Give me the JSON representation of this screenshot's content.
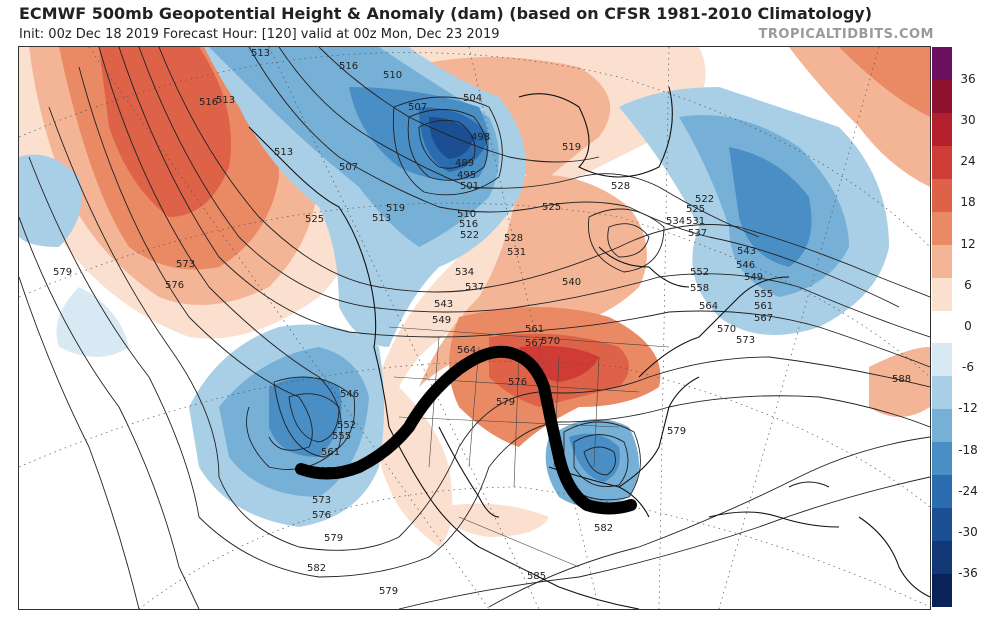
{
  "header": {
    "title": "ECMWF 500mb Geopotential Height & Anomaly (dam) (based on CFSR 1981-2010 Climatology)",
    "subtitle": "Init: 00z Dec 18 2019   Forecast Hour: [120]   valid at 00z Mon, Dec 23 2019",
    "credit": "TROPICALTIDBITS.COM"
  },
  "colorbar": {
    "ticks": [
      "36",
      "30",
      "24",
      "18",
      "12",
      "6",
      "0",
      "-6",
      "-12",
      "-18",
      "-24",
      "-30",
      "-36"
    ],
    "colors": [
      "#6b0f5e",
      "#8e1230",
      "#b31f2a",
      "#cf3b35",
      "#de6248",
      "#ea8a65",
      "#f4b596",
      "#fbe0d0",
      "#ffffff",
      "#d9e9f4",
      "#a9cfe6",
      "#76b0d7",
      "#4a8ec6",
      "#2b6cb0",
      "#1c4f92",
      "#123775",
      "#0b2258"
    ]
  },
  "contours": {
    "labels": [
      "513",
      "516",
      "510",
      "513",
      "516",
      "507",
      "504",
      "498",
      "489",
      "495",
      "501",
      "510",
      "516",
      "522",
      "507",
      "513",
      "519",
      "525",
      "513",
      "519",
      "525",
      "528",
      "531",
      "534",
      "537",
      "540",
      "543",
      "549",
      "528",
      "522",
      "525",
      "531",
      "534",
      "537",
      "543",
      "546",
      "549",
      "552",
      "555",
      "558",
      "561",
      "564",
      "567",
      "570",
      "573",
      "561",
      "564",
      "567",
      "570",
      "576",
      "579",
      "579",
      "576",
      "573",
      "579",
      "546",
      "552",
      "555",
      "561",
      "567",
      "573",
      "576",
      "579",
      "582",
      "585",
      "582",
      "579",
      "588"
    ]
  },
  "annotation": {
    "shape": "hand-drawn black wavy line marking the jet stream pattern"
  }
}
